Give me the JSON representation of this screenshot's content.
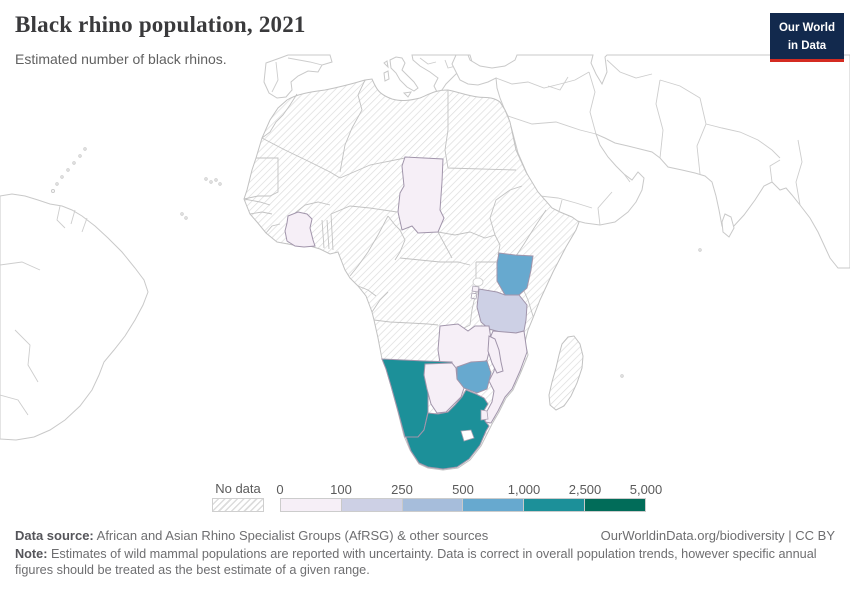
{
  "header": {
    "title": "Black rhino population, 2021",
    "subtitle": "Estimated number of black rhinos.",
    "logo": {
      "line1": "Our World",
      "line2": "in Data",
      "bg_color": "#12294d",
      "accent_color": "#d42b21"
    }
  },
  "legend": {
    "no_data_label": "No data",
    "tick_labels": [
      "0",
      "100",
      "250",
      "500",
      "1,000",
      "2,500",
      "5,000"
    ],
    "bin_colors": [
      "#f6eff7",
      "#cdd0e5",
      "#a6bddb",
      "#67a9cf",
      "#1c9099",
      "#016c59"
    ],
    "hatch_meaning": "no-data-pattern"
  },
  "chart_data": {
    "type": "heatmap",
    "title": "Black rhino population, 2021",
    "subtitle": "Estimated number of black rhinos.",
    "legend_bins": [
      "0-100",
      "100-250",
      "250-500",
      "500-1,000",
      "1,000-2,500",
      "2,500-5,000"
    ],
    "series": [
      {
        "name": "Chad",
        "bin": "0-100",
        "color": "#f6eff7"
      },
      {
        "name": "Cote d'Ivoire",
        "bin": "0-100",
        "color": "#f6eff7"
      },
      {
        "name": "Kenya",
        "bin": "500-1,000",
        "color": "#67a9cf"
      },
      {
        "name": "Tanzania",
        "bin": "100-250",
        "color": "#cdd0e5"
      },
      {
        "name": "Zambia",
        "bin": "0-100",
        "color": "#f6eff7"
      },
      {
        "name": "Malawi",
        "bin": "0-100",
        "color": "#f6eff7"
      },
      {
        "name": "Mozambique",
        "bin": "0-100",
        "color": "#f6eff7"
      },
      {
        "name": "Zimbabwe",
        "bin": "500-1,000",
        "color": "#67a9cf"
      },
      {
        "name": "Botswana",
        "bin": "0-100",
        "color": "#f6eff7"
      },
      {
        "name": "Namibia",
        "bin": "1,000-2,500",
        "color": "#1c9099"
      },
      {
        "name": "South Africa",
        "bin": "1,000-2,500",
        "color": "#1c9099"
      },
      {
        "name": "Eswatini",
        "bin": "0-100",
        "color": "#f6eff7"
      },
      {
        "name": "Rwanda",
        "bin": "0-100",
        "color": "#f6eff7"
      }
    ]
  },
  "map": {
    "countries": [
      {
        "id": "chad",
        "color": "#f6eff7"
      },
      {
        "id": "cote-divoire",
        "color": "#f6eff7"
      },
      {
        "id": "kenya",
        "color": "#67a9cf"
      },
      {
        "id": "tanzania",
        "color": "#cdd0e5"
      },
      {
        "id": "zambia",
        "color": "#f6eff7"
      },
      {
        "id": "malawi",
        "color": "#f6eff7"
      },
      {
        "id": "mozambique",
        "color": "#f6eff7"
      },
      {
        "id": "zimbabwe",
        "color": "#67a9cf"
      },
      {
        "id": "botswana",
        "color": "#f6eff7"
      },
      {
        "id": "namibia",
        "color": "#1c9099"
      },
      {
        "id": "south-africa",
        "color": "#1c9099"
      },
      {
        "id": "eswatini",
        "color": "#f6eff7"
      },
      {
        "id": "rwanda",
        "color": "#f6eff7"
      }
    ]
  },
  "footer": {
    "source_label": "Data source:",
    "source_text": " African and Asian Rhino Specialist Groups (AfRSG) & other sources",
    "link_text": "OurWorldinData.org/biodiversity | CC BY",
    "note_label": "Note:",
    "note_text": " Estimates of wild mammal populations are reported with uncertainty. Data is correct in overall population trends, however specific annual figures should be treated as the best estimate of a given range."
  }
}
